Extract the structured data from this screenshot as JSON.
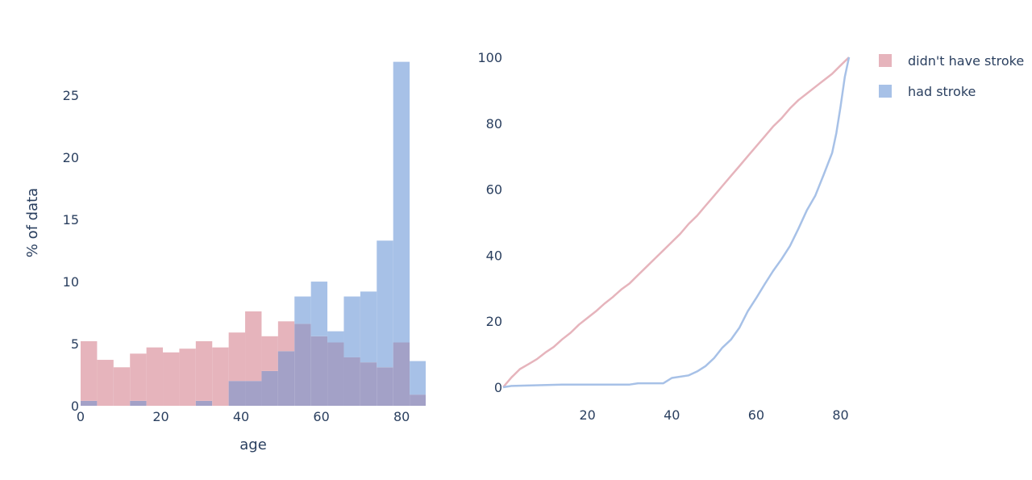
{
  "colors": {
    "no_stroke": "#e6b4bc",
    "stroke": "#a7c1e7",
    "overlap": "#a3a1c7",
    "text": "#2a3f5f"
  },
  "legend": [
    {
      "label": "didn't have stroke",
      "color": "#e6b4bc"
    },
    {
      "label": "had stroke",
      "color": "#a7c1e7"
    }
  ],
  "chart_data": [
    {
      "type": "bar",
      "subtype": "overlaid-histogram",
      "xlabel": "age",
      "ylabel": "% of data",
      "xlim": [
        0,
        86
      ],
      "ylim": [
        0,
        28
      ],
      "xticks": [
        0,
        20,
        40,
        60,
        80
      ],
      "yticks": [
        0,
        5,
        10,
        15,
        20,
        25
      ],
      "bin_edges": [
        0,
        4.1,
        8.2,
        12.3,
        16.4,
        20.5,
        24.6,
        28.7,
        32.8,
        36.9,
        41,
        45.1,
        49.2,
        53.3,
        57.4,
        61.5,
        65.6,
        69.7,
        73.8,
        77.9,
        82,
        86
      ],
      "series": [
        {
          "name": "didn't have stroke",
          "color": "#e6b4bc",
          "values": [
            5.2,
            3.7,
            3.1,
            4.2,
            4.7,
            4.3,
            4.6,
            5.2,
            4.7,
            5.9,
            7.6,
            5.6,
            6.8,
            6.6,
            5.6,
            5.1,
            3.9,
            3.5,
            3.1,
            5.1,
            0.9
          ]
        },
        {
          "name": "had stroke",
          "color": "#a7c1e7",
          "values": [
            0.4,
            0,
            0,
            0.4,
            0,
            0,
            0,
            0.4,
            0,
            2.0,
            2.0,
            2.8,
            4.4,
            8.8,
            10.0,
            6.0,
            8.8,
            9.2,
            13.3,
            27.7,
            3.6
          ]
        }
      ]
    },
    {
      "type": "line",
      "subtype": "cumulative-percentage",
      "xlim": [
        0,
        82
      ],
      "ylim": [
        0,
        100
      ],
      "xticks": [
        20,
        40,
        60,
        80
      ],
      "yticks": [
        0,
        20,
        40,
        60,
        80,
        100
      ],
      "series": [
        {
          "name": "didn't have stroke",
          "color": "#e6b4bc",
          "x": [
            0,
            2,
            4,
            6,
            8,
            10,
            12,
            14,
            16,
            18,
            20,
            22,
            24,
            26,
            28,
            30,
            32,
            34,
            36,
            38,
            40,
            42,
            44,
            46,
            48,
            50,
            52,
            54,
            56,
            58,
            60,
            62,
            64,
            66,
            68,
            70,
            72,
            74,
            76,
            78,
            80,
            82
          ],
          "y": [
            0,
            3,
            5.5,
            7,
            8.5,
            10.5,
            12.2,
            14.5,
            16.5,
            19,
            21,
            23,
            25.3,
            27.3,
            29.6,
            31.5,
            34,
            36.5,
            39,
            41.5,
            44,
            46.5,
            49.5,
            52,
            55,
            58,
            61,
            64,
            67,
            70,
            73,
            76,
            79,
            81.5,
            84.5,
            87,
            89,
            91,
            93,
            95,
            97.5,
            100
          ]
        },
        {
          "name": "had stroke",
          "color": "#a7c1e7",
          "x": [
            0,
            2,
            14,
            30,
            32,
            38,
            40,
            44,
            46,
            48,
            50,
            52,
            54,
            56,
            58,
            60,
            62,
            64,
            66,
            68,
            70,
            72,
            74,
            76,
            78,
            79,
            80,
            81,
            82
          ],
          "y": [
            0,
            0.4,
            0.8,
            0.8,
            1.2,
            1.2,
            2.8,
            3.6,
            4.8,
            6.4,
            8.8,
            12,
            14.4,
            18,
            23,
            27,
            31.2,
            35.2,
            38.8,
            42.8,
            48,
            53.6,
            58,
            64.4,
            71,
            77,
            85,
            94,
            100
          ]
        }
      ]
    }
  ]
}
